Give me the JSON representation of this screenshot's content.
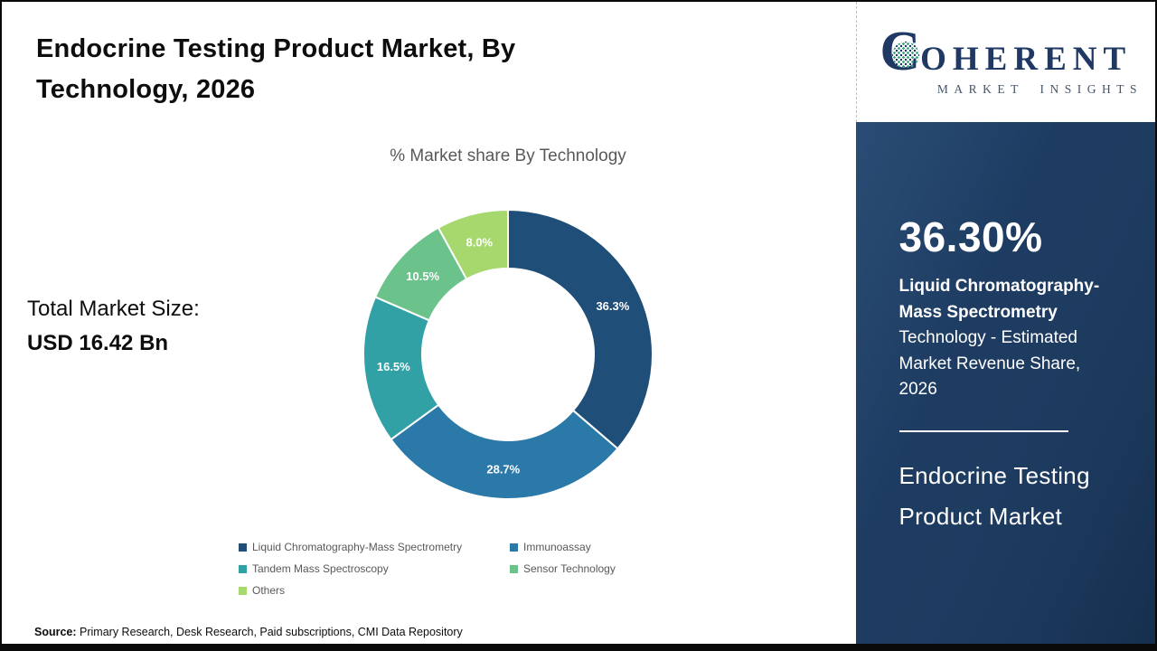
{
  "header": {
    "title": "Endocrine Testing Product Market, By Technology, 2026"
  },
  "left": {
    "total_market_label": "Total Market Size:",
    "total_market_value": "USD 16.42 Bn"
  },
  "chart_data": {
    "type": "pie",
    "subtype": "donut",
    "title": "% Market share By Technology",
    "categories": [
      "Liquid Chromatography-Mass Spectrometry",
      "Immunoassay",
      "Tandem Mass Spectroscopy",
      "Sensor Technology",
      "Others"
    ],
    "values": [
      36.3,
      28.7,
      16.5,
      10.5,
      8.0
    ],
    "labels": [
      "36.3%",
      "28.7%",
      "16.5%",
      "10.5%",
      "8.0%"
    ],
    "colors": [
      "#1f4e79",
      "#2b79a8",
      "#31a1a5",
      "#6cc28b",
      "#a6d86e"
    ],
    "start_angle_deg": 0,
    "direction": "clockwise",
    "legend_position": "bottom"
  },
  "source": {
    "label": "Source:",
    "text": " Primary Research, Desk Research, Paid subscriptions, CMI Data Repository"
  },
  "sidebar": {
    "logo_first_letter": "C",
    "logo_rest": "OHERENT",
    "logo_subtitle": "MARKET INSIGHTS",
    "highlight_value": "36.30%",
    "highlight_bold": "Liquid Chromatography-Mass Spectrometry",
    "highlight_rest": "Technology - Estimated Market Revenue Share, 2026",
    "market_name_line1": "Endocrine Testing",
    "market_name_line2": "Product Market",
    "panel_color": "#1e3c62"
  }
}
